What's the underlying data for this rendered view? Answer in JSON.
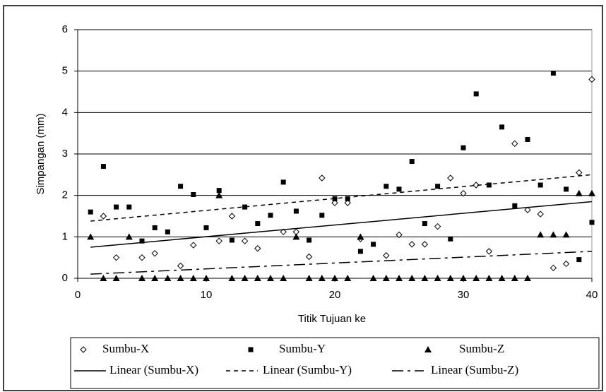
{
  "chart_data": {
    "type": "scatter",
    "xlabel": "Titik Tujuan ke",
    "ylabel": "Simpangan (mm)",
    "xlim": [
      0,
      40
    ],
    "xticks": [
      0,
      10,
      20,
      30,
      40
    ],
    "ylim": [
      0,
      6
    ],
    "yticks": [
      0,
      1,
      2,
      3,
      4,
      5,
      6
    ],
    "grid": true,
    "series": [
      {
        "name": "Sumbu-X",
        "marker": "diamond",
        "color": "#000000",
        "x": [
          2,
          3,
          5,
          6,
          8,
          9,
          11,
          12,
          13,
          14,
          16,
          17,
          18,
          19,
          20,
          21,
          22,
          24,
          25,
          26,
          27,
          28,
          29,
          30,
          31,
          32,
          34,
          35,
          36,
          37,
          38,
          39,
          40
        ],
        "values": [
          1.5,
          0.5,
          0.5,
          0.6,
          0.3,
          0.8,
          0.9,
          1.5,
          0.9,
          0.72,
          1.12,
          1.12,
          0.52,
          2.42,
          1.82,
          1.82,
          0.95,
          0.55,
          1.05,
          0.82,
          0.82,
          1.25,
          2.42,
          2.05,
          2.25,
          0.65,
          3.25,
          1.65,
          1.55,
          0.25,
          0.35,
          2.55,
          4.8
        ]
      },
      {
        "name": "Sumbu-Y",
        "marker": "square",
        "color": "#000000",
        "x": [
          1,
          2,
          3,
          4,
          5,
          6,
          7,
          8,
          9,
          10,
          11,
          12,
          13,
          14,
          15,
          16,
          17,
          18,
          19,
          20,
          21,
          22,
          23,
          24,
          25,
          26,
          27,
          28,
          29,
          30,
          31,
          32,
          33,
          34,
          35,
          36,
          37,
          38,
          39,
          40
        ],
        "values": [
          1.6,
          2.7,
          1.72,
          1.72,
          0.9,
          1.22,
          1.12,
          2.22,
          2.02,
          1.22,
          2.12,
          0.92,
          1.72,
          1.32,
          1.52,
          2.32,
          1.62,
          0.92,
          1.52,
          1.92,
          1.92,
          0.65,
          0.82,
          2.22,
          2.15,
          2.82,
          1.32,
          2.22,
          0.95,
          3.15,
          4.45,
          2.25,
          3.65,
          1.75,
          3.35,
          2.25,
          4.95,
          2.15,
          0.45,
          1.35
        ]
      },
      {
        "name": "Sumbu-Z",
        "marker": "triangle",
        "color": "#000000",
        "x": [
          1,
          2,
          3,
          4,
          5,
          6,
          7,
          8,
          9,
          10,
          11,
          12,
          13,
          14,
          15,
          16,
          17,
          18,
          19,
          20,
          21,
          22,
          23,
          24,
          25,
          26,
          27,
          28,
          29,
          30,
          31,
          32,
          33,
          34,
          35,
          36,
          37,
          38,
          39,
          40
        ],
        "values": [
          1.0,
          0,
          0,
          1.0,
          0,
          0,
          0,
          0,
          0,
          0,
          2.0,
          0,
          0,
          0,
          0,
          0,
          1.0,
          0,
          0,
          0,
          0,
          1.0,
          0,
          0,
          0,
          0,
          0,
          0,
          0,
          0,
          0,
          0,
          0,
          0,
          0,
          1.05,
          1.05,
          1.05,
          2.05,
          2.05
        ]
      },
      {
        "name": "Linear (Sumbu-X)",
        "dash": "none",
        "color": "#000000",
        "x": [
          1,
          40
        ],
        "values": [
          0.75,
          1.85
        ]
      },
      {
        "name": "Linear (Sumbu-Y)",
        "dash": "6 5",
        "color": "#000000",
        "x": [
          1,
          40
        ],
        "values": [
          1.38,
          2.5
        ]
      },
      {
        "name": "Linear (Sumbu-Z)",
        "dash": "16 6 4 6",
        "color": "#000000",
        "x": [
          1,
          40
        ],
        "values": [
          0.1,
          0.65
        ]
      }
    ]
  }
}
